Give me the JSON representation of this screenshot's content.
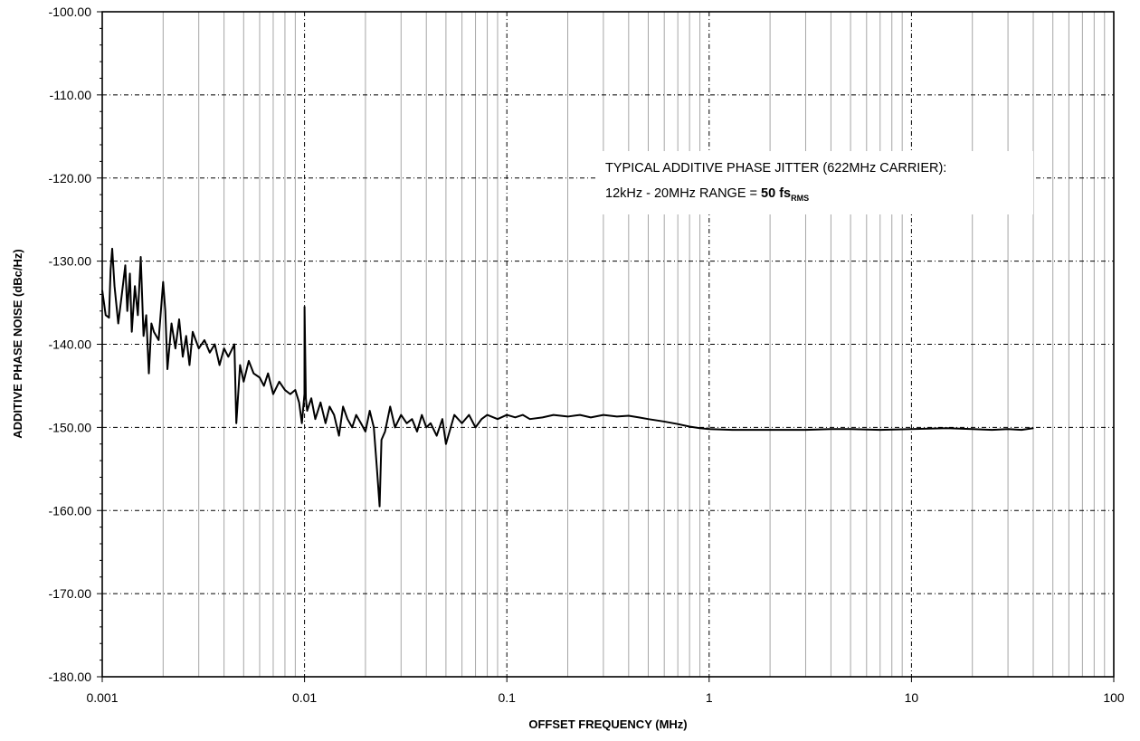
{
  "chart_data": {
    "type": "line",
    "title": "",
    "xlabel": "OFFSET FREQUENCY (MHz)",
    "ylabel": "ADDITIVE PHASE NOISE (dBc/Hz)",
    "x_scale": "log",
    "xlim": [
      0.001,
      100
    ],
    "ylim": [
      -180,
      -100
    ],
    "grid": true,
    "x_tick_labels": [
      "0.001",
      "0.01",
      "0.1",
      "1",
      "10",
      "100"
    ],
    "y_tick_labels": [
      "-100.00",
      "-110.00",
      "-120.00",
      "-130.00",
      "-140.00",
      "-150.00",
      "-160.00",
      "-170.00",
      "-180.00"
    ],
    "annotation": {
      "line1": "TYPICAL ADDITIVE  PHASE JITTER (622MHz CARRIER):",
      "line2_prefix": "12kHz - 20MHz RANGE = ",
      "line2_value": "50 fs",
      "line2_sub": "RMS"
    },
    "series": [
      {
        "color": "#000000",
        "x": [
          0.001,
          0.00104,
          0.00108,
          0.0011,
          0.00112,
          0.00115,
          0.0012,
          0.00125,
          0.0013,
          0.00133,
          0.00137,
          0.0014,
          0.00145,
          0.0015,
          0.00155,
          0.0016,
          0.00165,
          0.0017,
          0.00175,
          0.0018,
          0.0019,
          0.002,
          0.00205,
          0.0021,
          0.0022,
          0.0023,
          0.0024,
          0.0025,
          0.0026,
          0.0027,
          0.0028,
          0.003,
          0.0032,
          0.0034,
          0.0036,
          0.0038,
          0.004,
          0.0042,
          0.0045,
          0.0046,
          0.0048,
          0.005,
          0.0053,
          0.0056,
          0.006,
          0.0063,
          0.0066,
          0.007,
          0.0075,
          0.008,
          0.0085,
          0.009,
          0.0094,
          0.0097,
          0.00999,
          0.01,
          0.01015,
          0.0103,
          0.0108,
          0.0113,
          0.012,
          0.0127,
          0.0133,
          0.014,
          0.0148,
          0.0155,
          0.0163,
          0.0172,
          0.018,
          0.019,
          0.02,
          0.021,
          0.022,
          0.0228,
          0.0235,
          0.024,
          0.025,
          0.0265,
          0.028,
          0.03,
          0.032,
          0.034,
          0.036,
          0.038,
          0.04,
          0.042,
          0.045,
          0.048,
          0.05,
          0.055,
          0.06,
          0.065,
          0.07,
          0.075,
          0.08,
          0.09,
          0.1,
          0.11,
          0.12,
          0.13,
          0.15,
          0.17,
          0.2,
          0.23,
          0.26,
          0.3,
          0.35,
          0.4,
          0.45,
          0.5,
          0.6,
          0.7,
          0.8,
          0.9,
          1.0,
          1.3,
          1.7,
          2,
          3,
          4,
          5,
          7,
          10,
          15,
          20,
          25,
          30,
          35,
          40
        ],
        "y": [
          -133.5,
          -136.5,
          -136.8,
          -131.0,
          -128.5,
          -133.0,
          -137.5,
          -134.0,
          -130.5,
          -136.0,
          -131.5,
          -138.5,
          -133.0,
          -136.5,
          -129.5,
          -139.0,
          -136.5,
          -143.5,
          -137.5,
          -138.5,
          -139.5,
          -132.5,
          -136.0,
          -143.0,
          -137.5,
          -140.5,
          -137.0,
          -141.5,
          -139.0,
          -142.5,
          -138.5,
          -140.5,
          -139.5,
          -141.0,
          -140.0,
          -142.5,
          -140.5,
          -141.5,
          -140.0,
          -149.5,
          -142.5,
          -144.5,
          -142.0,
          -143.5,
          -144.0,
          -145.0,
          -143.5,
          -146.0,
          -144.5,
          -145.5,
          -146.0,
          -145.5,
          -147.0,
          -149.5,
          -146.0,
          -135.5,
          -146.5,
          -148.0,
          -146.5,
          -149.0,
          -147.0,
          -149.5,
          -147.5,
          -148.5,
          -151.0,
          -147.5,
          -149.0,
          -150.0,
          -148.5,
          -149.5,
          -150.5,
          -148.0,
          -150.0,
          -155.0,
          -159.5,
          -151.5,
          -150.5,
          -147.5,
          -150.0,
          -148.5,
          -149.5,
          -149.0,
          -150.5,
          -148.5,
          -150.0,
          -149.5,
          -151.0,
          -149.0,
          -152.0,
          -148.5,
          -149.5,
          -148.5,
          -150.0,
          -149.0,
          -148.5,
          -149.0,
          -148.5,
          -148.8,
          -148.5,
          -149.0,
          -148.8,
          -148.5,
          -148.7,
          -148.5,
          -148.8,
          -148.5,
          -148.7,
          -148.6,
          -148.8,
          -149.0,
          -149.3,
          -149.6,
          -149.9,
          -150.1,
          -150.2,
          -150.3,
          -150.3,
          -150.3,
          -150.3,
          -150.2,
          -150.2,
          -150.3,
          -150.2,
          -150.1,
          -150.2,
          -150.3,
          -150.2,
          -150.3,
          -150.1
        ]
      }
    ]
  }
}
